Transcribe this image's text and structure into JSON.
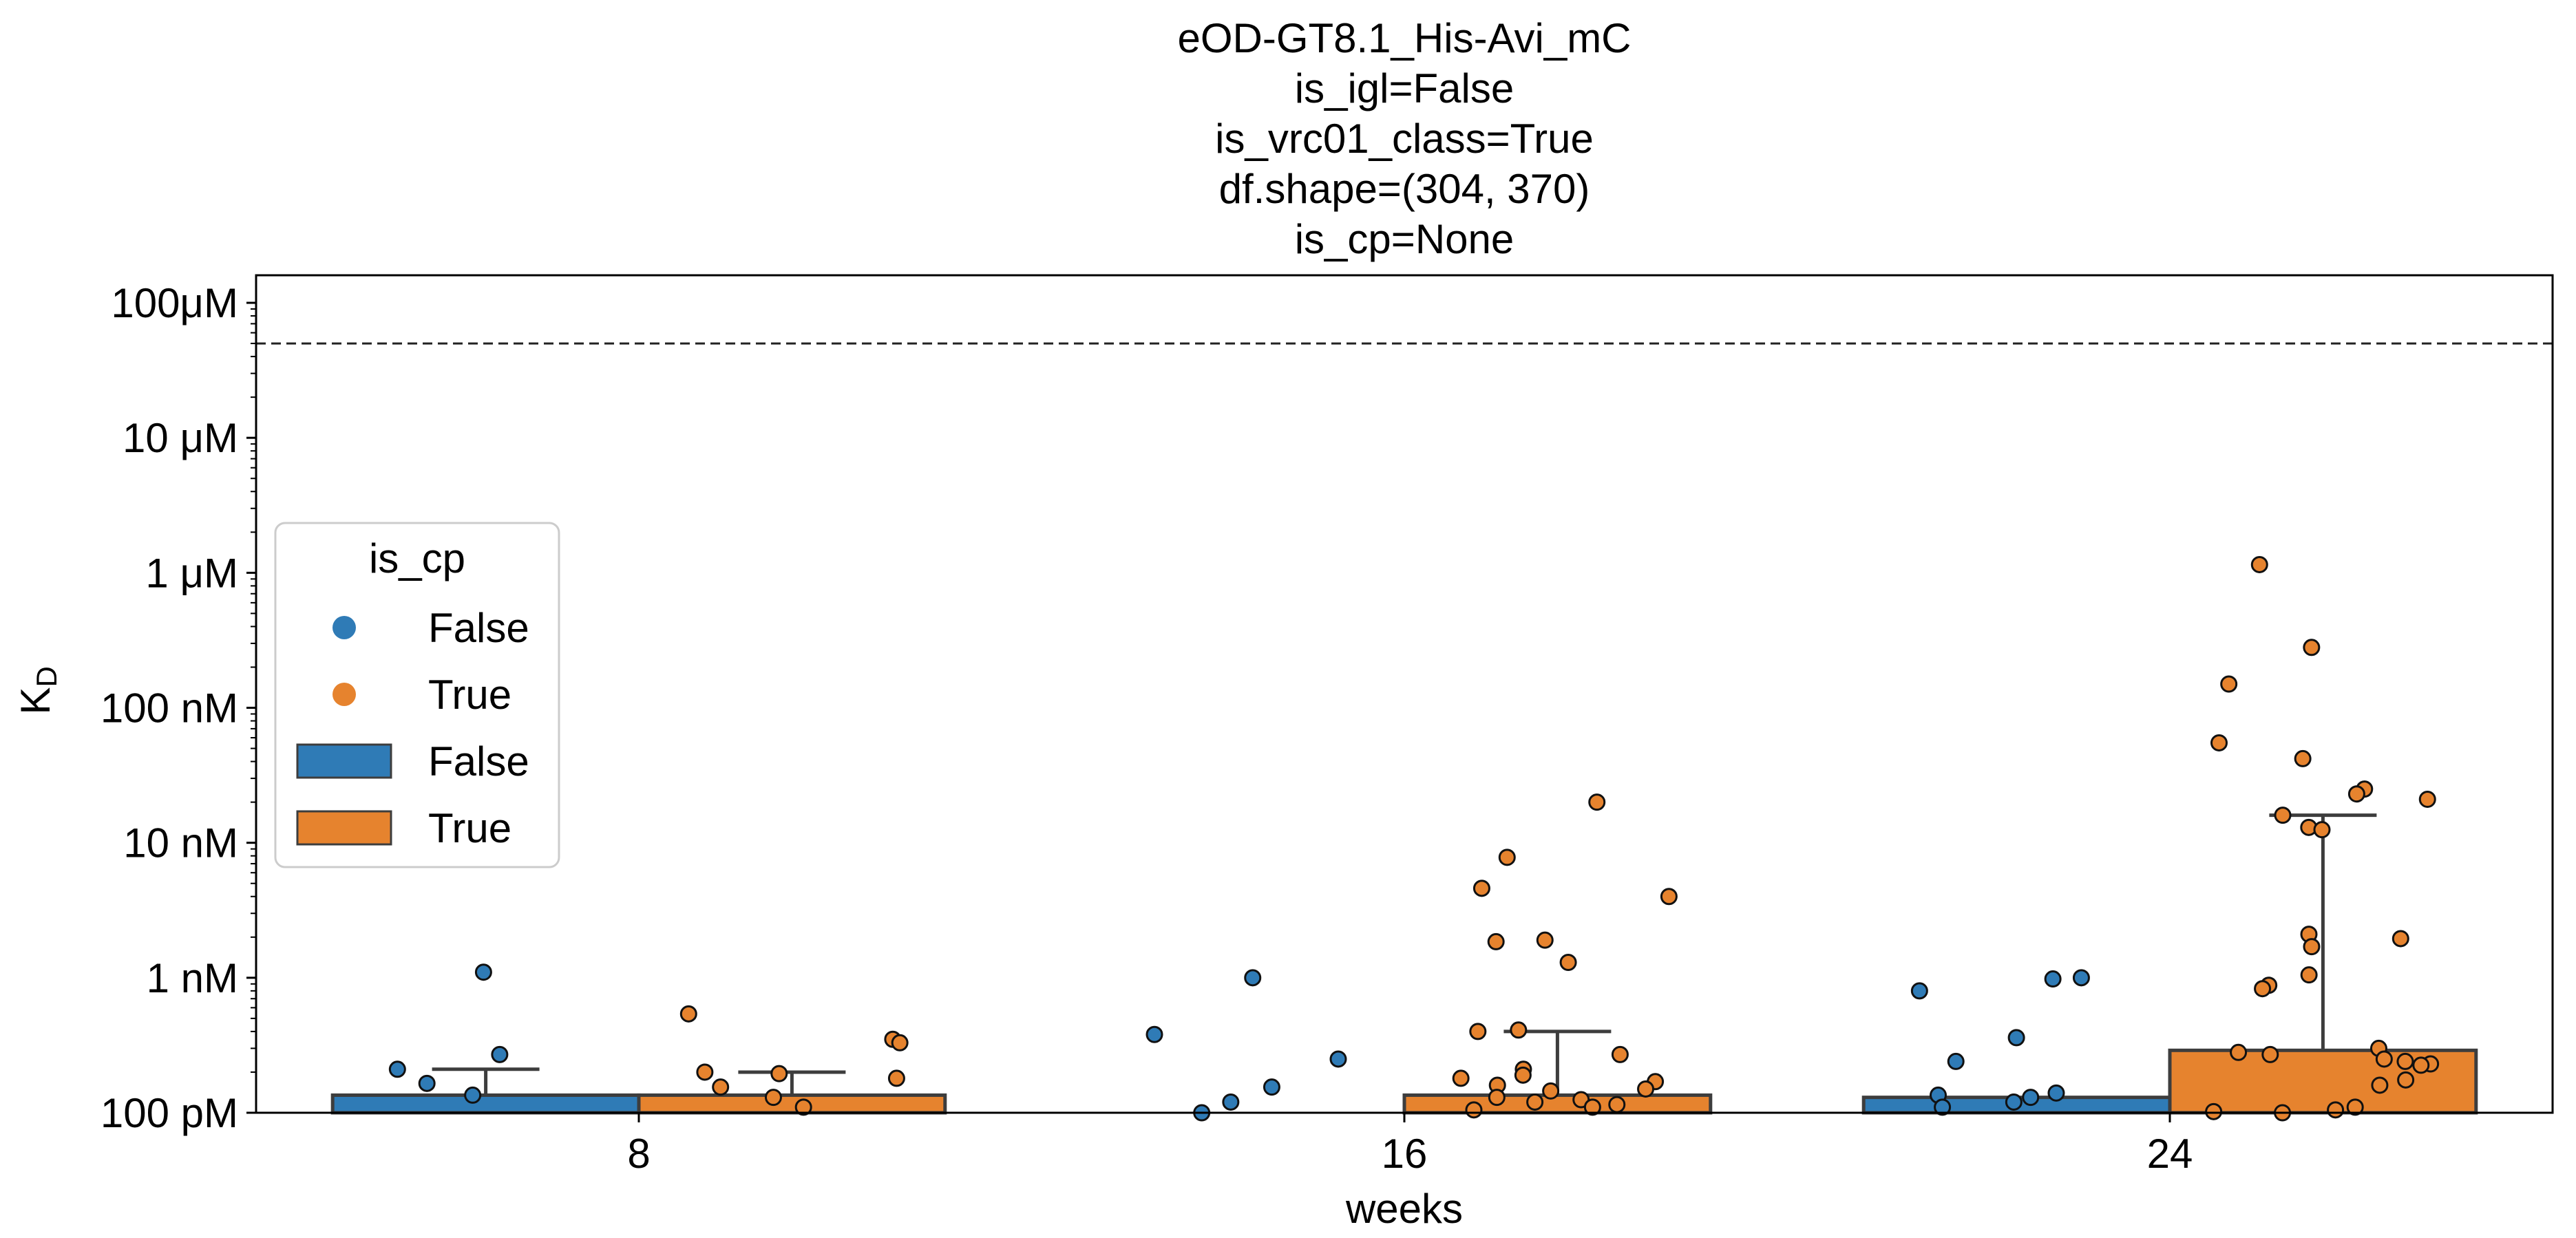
{
  "chart_data": {
    "type": "bar",
    "title_lines": [
      "eOD-GT8.1_His-Avi_mC",
      "is_igl=False",
      "is_vrc01_class=True",
      "df.shape=(304, 370)",
      "is_cp=None"
    ],
    "xlabel": "weeks",
    "ylabel_main": "K",
    "ylabel_sub": "D",
    "y_scale": "log",
    "ylim": [
      1e-10,
      0.00016
    ],
    "y_ticks": [
      {
        "value": 1e-10,
        "label": "100 pM"
      },
      {
        "value": 1e-09,
        "label": "1 nM"
      },
      {
        "value": 1e-08,
        "label": "10 nM"
      },
      {
        "value": 1e-07,
        "label": "100 nM"
      },
      {
        "value": 1e-06,
        "label": "1 μM"
      },
      {
        "value": 1e-05,
        "label": "10 μM"
      },
      {
        "value": 0.0001,
        "label": "100μM"
      }
    ],
    "reference_line": 5e-05,
    "categories": [
      "8",
      "16",
      "24"
    ],
    "colors": {
      "False": "#2f7bb6",
      "True": "#e6832e"
    },
    "legend": {
      "title": "is_cp",
      "placement": "center-left",
      "point_entries": [
        "False",
        "True"
      ],
      "bar_entries": [
        "False",
        "True"
      ]
    },
    "series": [
      {
        "name": "False",
        "bar_values": [
          1.35e-10,
          null,
          1.3e-10
        ],
        "error_upper": [
          2.1e-10,
          null,
          null
        ],
        "points": [
          [
            1.1e-09,
            2.7e-10,
            2.1e-10,
            1.65e-10,
            1.35e-10
          ],
          [
            1e-09,
            3.8e-10,
            2.5e-10,
            1.55e-10,
            1.2e-10,
            1e-10
          ],
          [
            1e-09,
            9.8e-10,
            8e-10,
            3.6e-10,
            2.4e-10,
            1.4e-10,
            1.35e-10,
            1.3e-10,
            1.2e-10,
            1.1e-10
          ]
        ]
      },
      {
        "name": "True",
        "bar_values": [
          1.35e-10,
          1.35e-10,
          2.9e-10
        ],
        "error_upper": [
          2e-10,
          4e-10,
          1.6e-08
        ],
        "points": [
          [
            5.4e-10,
            3.5e-10,
            3.3e-10,
            2e-10,
            1.95e-10,
            1.8e-10,
            1.55e-10,
            1.3e-10,
            1.1e-10
          ],
          [
            2e-08,
            7.8e-09,
            4.6e-09,
            4e-09,
            1.9e-09,
            1.85e-09,
            1.3e-09,
            4.1e-10,
            4e-10,
            2.7e-10,
            2.1e-10,
            1.9e-10,
            1.8e-10,
            1.7e-10,
            1.6e-10,
            1.5e-10,
            1.45e-10,
            1.3e-10,
            1.25e-10,
            1.2e-10,
            1.15e-10,
            1.1e-10,
            1.05e-10
          ],
          [
            1.15e-06,
            2.8e-07,
            1.5e-07,
            5.5e-08,
            4.2e-08,
            2.5e-08,
            2.3e-08,
            2.1e-08,
            1.6e-08,
            1.3e-08,
            1.25e-08,
            2.1e-09,
            1.95e-09,
            1.7e-09,
            1.05e-09,
            8.8e-10,
            8.3e-10,
            3e-10,
            2.8e-10,
            2.7e-10,
            2.5e-10,
            2.4e-10,
            2.3e-10,
            2.25e-10,
            1.75e-10,
            1.6e-10,
            1.1e-10,
            1.05e-10,
            1.02e-10,
            1e-10
          ]
        ]
      }
    ]
  }
}
